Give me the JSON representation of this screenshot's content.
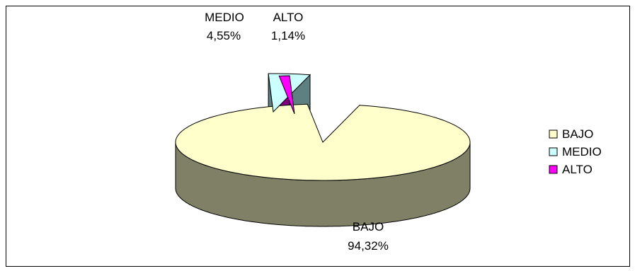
{
  "chart_data": {
    "type": "pie",
    "style": "3d-exploded",
    "categories": [
      "BAJO",
      "MEDIO",
      "ALTO"
    ],
    "values": [
      94.32,
      4.55,
      1.14
    ],
    "value_labels": [
      "94,32%",
      "4,55%",
      "1,14%"
    ],
    "colors": {
      "BAJO": "#ffffcc",
      "MEDIO": "#ccffff",
      "ALTO": "#ff00ff"
    },
    "side_colors": {
      "BAJO": "#808066",
      "MEDIO": "#5f8080",
      "ALTO": "#800080"
    },
    "legend": {
      "position": "right",
      "items": [
        {
          "label": "BAJO",
          "color": "#ffffcc"
        },
        {
          "label": "MEDIO",
          "color": "#ccffff"
        },
        {
          "label": "ALTO",
          "color": "#ff00ff"
        }
      ]
    },
    "title": ""
  }
}
